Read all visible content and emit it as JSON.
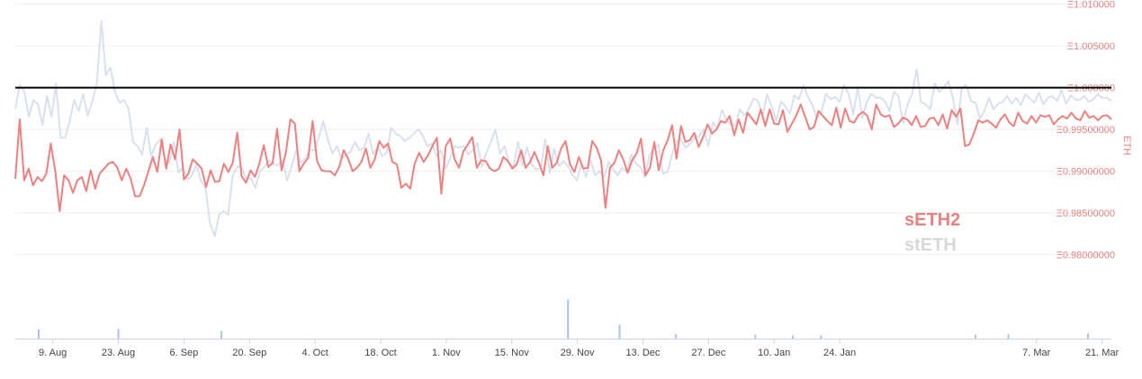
{
  "chart_data": {
    "type": "line",
    "title": "",
    "ylabel": "ETH",
    "ylim": [
      0.975,
      1.0105
    ],
    "y_ticks": [
      "Ξ1.010000",
      "Ξ1.005000",
      "Ξ1.000000",
      "Ξ0.99500000",
      "Ξ0.99000000",
      "Ξ0.98500000",
      "Ξ0.98000000"
    ],
    "y_tick_values": [
      1.01,
      1.005,
      1.0,
      0.995,
      0.99,
      0.985,
      0.98
    ],
    "reference_line": 1.0,
    "x_ticks": [
      "9. Aug",
      "23. Aug",
      "6. Sep",
      "20. Sep",
      "4. Oct",
      "18. Oct",
      "1. Nov",
      "15. Nov",
      "29. Nov",
      "13. Dec",
      "27. Dec",
      "10. Jan",
      "24. Jan",
      "7. Mar",
      "21. Mar"
    ],
    "x_tick_days": [
      8,
      22,
      36,
      50,
      64,
      78,
      92,
      106,
      120,
      134,
      148,
      162,
      176,
      218,
      232
    ],
    "x_start": "2021-08-01",
    "x_end": "2022-03-23",
    "colors": {
      "seth2": "#ee8080",
      "steth": "#d9e0ee",
      "volume": "#a9c4ec",
      "reference": "#000000"
    },
    "legend": [
      {
        "label": "sETH2",
        "color": "#ee8080"
      },
      {
        "label": "stETH",
        "color": "#d8d8d8"
      }
    ],
    "series": [
      {
        "name": "sETH2",
        "x_start": 0,
        "x_end": 234,
        "values": [
          0.9891,
          0.9962,
          0.9889,
          0.9903,
          0.9883,
          0.9893,
          0.9888,
          0.9897,
          0.9933,
          0.99,
          0.9852,
          0.9895,
          0.9889,
          0.9874,
          0.9889,
          0.9893,
          0.9876,
          0.9901,
          0.9879,
          0.9897,
          0.9903,
          0.9909,
          0.9911,
          0.9904,
          0.9889,
          0.9903,
          0.9891,
          0.987,
          0.987,
          0.9883,
          0.99,
          0.9917,
          0.9899,
          0.9938,
          0.9903,
          0.9932,
          0.9914,
          0.995,
          0.989,
          0.9897,
          0.9914,
          0.9909,
          0.9903,
          0.9881,
          0.9901,
          0.9887,
          0.9888,
          0.9909,
          0.9899,
          0.991,
          0.9946,
          0.9894,
          0.9886,
          0.9901,
          0.9893,
          0.9909,
          0.9931,
          0.9905,
          0.991,
          0.9951,
          0.9901,
          0.9923,
          0.9962,
          0.9957,
          0.99,
          0.9909,
          0.9916,
          0.996,
          0.9912,
          0.9901,
          0.99,
          0.99,
          0.9895,
          0.9905,
          0.9925,
          0.9915,
          0.99,
          0.9904,
          0.9911,
          0.9927,
          0.9904,
          0.9914,
          0.9936,
          0.9928,
          0.9933,
          0.9911,
          0.9908,
          0.988,
          0.9885,
          0.9879,
          0.9909,
          0.9922,
          0.9911,
          0.9919,
          0.993,
          0.994,
          0.9873,
          0.993,
          0.9939,
          0.9914,
          0.9904,
          0.9924,
          0.9932,
          0.9941,
          0.9904,
          0.9913,
          0.9912,
          0.9903,
          0.99,
          0.9903,
          0.9917,
          0.9912,
          0.9903,
          0.9908,
          0.9925,
          0.9904,
          0.9911,
          0.9923,
          0.991,
          0.9895,
          0.993,
          0.9904,
          0.991,
          0.9927,
          0.9936,
          0.9908,
          0.9899,
          0.9917,
          0.9903,
          0.9904,
          0.9936,
          0.9928,
          0.9913,
          0.9856,
          0.9904,
          0.991,
          0.9925,
          0.9914,
          0.9898,
          0.9913,
          0.9921,
          0.9939,
          0.9895,
          0.9904,
          0.9935,
          0.9901,
          0.9925,
          0.9937,
          0.9955,
          0.9915,
          0.9954,
          0.9935,
          0.9937,
          0.9946,
          0.9929,
          0.9941,
          0.9956,
          0.9945,
          0.995,
          0.996,
          0.9958,
          0.9966,
          0.9943,
          0.9962,
          0.9946,
          0.997,
          0.9963,
          0.9956,
          0.9974,
          0.9954,
          0.9974,
          0.9957,
          0.9956,
          0.9973,
          0.9947,
          0.9957,
          0.9967,
          0.998,
          0.9965,
          0.995,
          0.9953,
          0.9972,
          0.9966,
          0.996,
          0.9955,
          0.9976,
          0.9952,
          0.9975,
          0.996,
          0.9958,
          0.9967,
          0.9971,
          0.9966,
          0.995,
          0.998,
          0.9968,
          0.9965,
          0.9967,
          0.9953,
          0.9957,
          0.9964,
          0.9962,
          0.9955,
          0.9966,
          0.9953,
          0.9954,
          0.9963,
          0.9964,
          0.9955,
          0.9968,
          0.9951,
          0.9973,
          0.9965,
          0.9975,
          0.993,
          0.9932,
          0.9945,
          0.9961,
          0.9958,
          0.9961,
          0.9957,
          0.9952,
          0.9962,
          0.9968,
          0.9958,
          0.9954,
          0.997,
          0.996,
          0.9957,
          0.9966,
          0.9958,
          0.9967,
          0.9965,
          0.9967,
          0.9956,
          0.9962,
          0.9966,
          0.9963,
          0.997,
          0.9963,
          0.9961,
          0.9972,
          0.9964,
          0.9966,
          0.9961,
          0.9966,
          0.9967,
          0.9962
        ]
      },
      {
        "name": "stETH",
        "x_start": 0,
        "x_end": 234,
        "values": [
          0.9975,
          1.0003,
          0.9995,
          0.9965,
          0.9985,
          0.998,
          0.9955,
          0.999,
          0.9965,
          1.0005,
          0.994,
          0.994,
          0.996,
          0.9985,
          0.9972,
          0.9992,
          0.9966,
          0.9984,
          1.0005,
          1.008,
          1.0015,
          1.0024,
          0.9995,
          0.9982,
          0.9985,
          0.9975,
          0.9935,
          0.993,
          0.992,
          0.9952,
          0.9918,
          0.9932,
          0.9938,
          0.9915,
          0.991,
          0.9935,
          0.9898,
          0.9905,
          0.989,
          0.9895,
          0.9908,
          0.9888,
          0.988,
          0.9838,
          0.9822,
          0.9848,
          0.9852,
          0.9848,
          0.9895,
          0.9906,
          0.9904,
          0.989,
          0.9892,
          0.988,
          0.99,
          0.9905,
          0.9913,
          0.9908,
          0.9907,
          0.9913,
          0.9889,
          0.9905,
          0.9925,
          0.991,
          0.9915,
          0.9925,
          0.9925,
          0.994,
          0.996,
          0.9938,
          0.9921,
          0.993,
          0.9915,
          0.992,
          0.9923,
          0.9935,
          0.9925,
          0.9928,
          0.9945,
          0.992,
          0.993,
          0.9918,
          0.9922,
          0.9952,
          0.9945,
          0.9942,
          0.9936,
          0.994,
          0.9945,
          0.995,
          0.9942,
          0.993,
          0.9933,
          0.9918,
          0.9925,
          0.9903,
          0.9915,
          0.993,
          0.9928,
          0.993,
          0.992,
          0.9925,
          0.9934,
          0.9905,
          0.9922,
          0.9935,
          0.995,
          0.9921,
          0.993,
          0.991,
          0.9904,
          0.9935,
          0.9907,
          0.9929,
          0.9908,
          0.9902,
          0.9904,
          0.9938,
          0.9898,
          0.9927,
          0.9906,
          0.9912,
          0.9906,
          0.9896,
          0.9889,
          0.9908,
          0.9893,
          0.9913,
          0.9895,
          0.99,
          0.9893,
          0.9911,
          0.9902,
          0.9895,
          0.9904,
          0.9899,
          0.992,
          0.9909,
          0.9905,
          0.9893,
          0.9919,
          0.9927,
          0.9932,
          0.9897,
          0.9899,
          0.992,
          0.9936,
          0.9938,
          0.9928,
          0.9933,
          0.994,
          0.9942,
          0.995,
          0.993,
          0.9958,
          0.9952,
          0.9973,
          0.9962,
          0.9955,
          0.9955,
          0.9974,
          0.9967,
          0.9975,
          0.9987,
          0.9984,
          0.9966,
          0.9992,
          0.9978,
          0.996,
          0.9983,
          0.9978,
          0.9969,
          0.9991,
          0.9986,
          1.0003,
          0.9989,
          0.9979,
          0.9963,
          0.9971,
          0.9993,
          0.9986,
          0.9989,
          0.9983,
          1.0003,
          0.9992,
          0.9968,
          1.0001,
          0.9964,
          0.9983,
          0.9993,
          0.9988,
          0.9988,
          0.9984,
          0.9972,
          0.9995,
          0.999,
          0.9957,
          0.998,
          0.9992,
          1.0022,
          0.9982,
          0.998,
          0.9974,
          1.0005,
          0.9995,
          1.0,
          1.0008,
          0.9988,
          0.9956,
          1.0,
          1.0003,
          0.9984,
          0.9982,
          0.9963,
          0.9973,
          0.9988,
          0.9974,
          0.9981,
          0.9983,
          0.999,
          0.9981,
          0.9988,
          0.9979,
          0.9992,
          0.9987,
          0.9982,
          0.9994,
          0.998,
          0.9988,
          0.999,
          0.9984,
          0.9997,
          0.9981,
          0.9991,
          0.9986,
          0.9985,
          0.999,
          0.9983,
          0.9986,
          0.9992,
          0.9988,
          0.9988,
          0.9984
        ]
      }
    ],
    "volume_bars": [
      {
        "x": 5,
        "h": 0.15
      },
      {
        "x": 22,
        "h": 0.15
      },
      {
        "x": 44,
        "h": 0.12
      },
      {
        "x": 118,
        "h": 0.62
      },
      {
        "x": 129,
        "h": 0.22
      },
      {
        "x": 141,
        "h": 0.07
      },
      {
        "x": 158,
        "h": 0.06
      },
      {
        "x": 166,
        "h": 0.05
      },
      {
        "x": 172,
        "h": 0.05
      },
      {
        "x": 205,
        "h": 0.06
      },
      {
        "x": 212,
        "h": 0.07
      },
      {
        "x": 229,
        "h": 0.08
      }
    ]
  }
}
